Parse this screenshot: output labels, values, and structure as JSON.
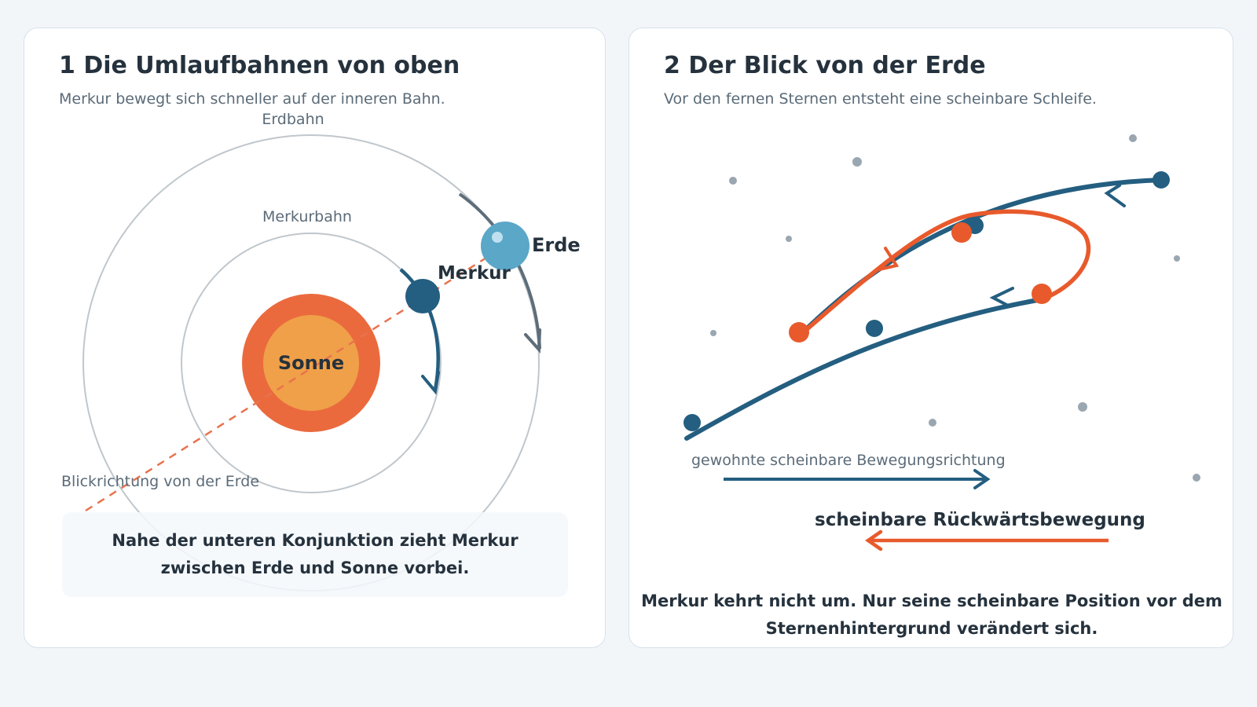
{
  "panel1": {
    "title": "1 Die Umlaufbahnen von oben",
    "subtitle": "Merkur bewegt sich schneller auf der inneren Bahn.",
    "labels": {
      "earth_orbit": "Erdbahn",
      "mercury_orbit": "Merkurbahn",
      "sun": "Sonne",
      "mercury": "Merkur",
      "earth": "Erde",
      "line_of_sight": "Blickrichtung von der Erde"
    },
    "caption": "Nahe der unteren Konjunktion zieht Merkur zwischen Erde und Sonne vorbei."
  },
  "panel2": {
    "title": "2 Der Blick von der Erde",
    "subtitle": "Vor den fernen Sternen entsteht eine scheinbare Schleife.",
    "legend": {
      "normal_direction": "gewohnte scheinbare Bewegungsrichtung",
      "retrograde": "scheinbare Rückwärtsbewegung"
    },
    "caption": "Merkur kehrt nicht um. Nur seine scheinbare Position vor dem Sternenhintergrund verändert sich."
  },
  "colors": {
    "page_bg": "#f3f6f9",
    "panel_bg": "#ffffff",
    "dark_blue": "#245e80",
    "orange": "#e85a2c",
    "sun_outer": "#ea6a3e",
    "sun_inner": "#f0a048",
    "earth": "#5aa7c8",
    "orbit_gray": "#c0c7cc",
    "arrow_gray": "#5d6d79",
    "star_gray": "#9aa6b0",
    "text_dark": "#25323d",
    "text_muted": "#5b6b78"
  }
}
